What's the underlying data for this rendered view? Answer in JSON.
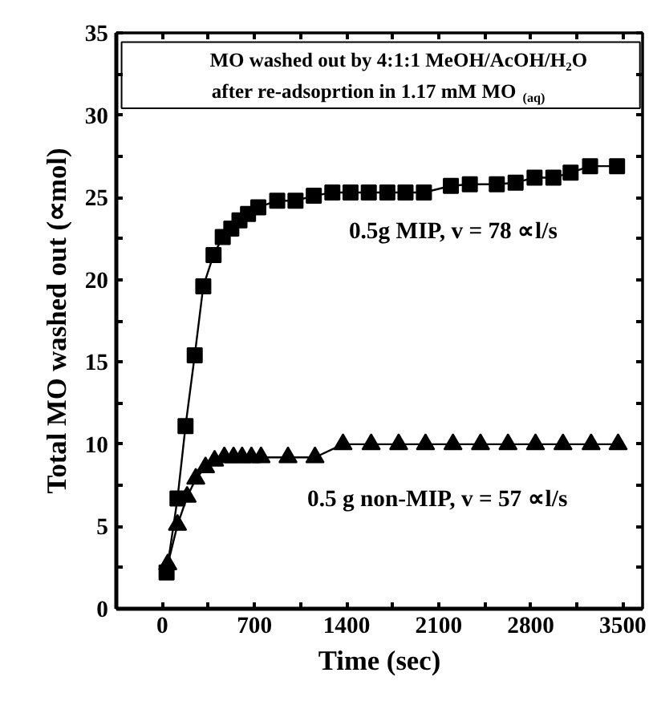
{
  "chart_data": {
    "type": "line",
    "title": "MO washed out by 4:1:1 MeOH/AcOH/H₂O",
    "subtitle": "after re-adsoprtion in 1.17 mM MO$_{(aq)}$",
    "xlabel": "Time (sec)",
    "ylabel": "Total MO washed out (∝mol)",
    "series": [
      {
        "name": "0.5g MIP, v = 78 ∝l/s",
        "color": "#000000",
        "marker": "square",
        "x": [
          32,
          115,
          176,
          246,
          311,
          389,
          459,
          524,
          586,
          651,
          729,
          873,
          1012,
          1151,
          1292,
          1430,
          1569,
          1710,
          1848,
          1988,
          2193,
          2337,
          2542,
          2685,
          2829,
          2972,
          3103,
          3251,
          3456
        ],
        "values": [
          2.2,
          6.7,
          11.1,
          15.4,
          19.6,
          21.5,
          22.6,
          23.1,
          23.6,
          24.0,
          24.4,
          24.8,
          24.8,
          25.1,
          25.3,
          25.3,
          25.3,
          25.3,
          25.3,
          25.3,
          25.7,
          25.8,
          25.8,
          25.9,
          26.2,
          26.2,
          26.5,
          26.9,
          26.9
        ]
      },
      {
        "name": "0.5 g non-MIP, v = 57 ∝l/s",
        "color": "#000000",
        "marker": "triangle",
        "x": [
          41,
          115,
          188,
          254,
          328,
          397,
          471,
          541,
          606,
          677,
          750,
          955,
          1160,
          1373,
          1587,
          1796,
          2000,
          2209,
          2418,
          2627,
          2836,
          3045,
          3259,
          3464
        ],
        "values": [
          2.7,
          5.1,
          6.8,
          7.9,
          8.6,
          9.0,
          9.2,
          9.2,
          9.2,
          9.2,
          9.2,
          9.2,
          9.2,
          10.0,
          10.0,
          10.0,
          10.0,
          10.0,
          10.0,
          10.0,
          10.0,
          10.0,
          10.0,
          10.0
        ]
      }
    ],
    "xlim": [
      -350,
      3650
    ],
    "ylim": [
      0,
      35
    ],
    "xticks": [
      0,
      {
        "value": 350,
        "label": null
      },
      700,
      {
        "value": 1050,
        "label": null
      },
      1400,
      {
        "value": 1750,
        "label": null
      },
      2100,
      {
        "value": 2450,
        "label": null
      },
      2800,
      {
        "value": 3150,
        "label": null
      },
      3500
    ],
    "yticks": [
      0,
      {
        "value": 2.5,
        "label": null
      },
      5,
      {
        "value": 7.5,
        "label": null
      },
      10,
      {
        "value": 12.5,
        "label": null
      },
      15,
      {
        "value": 17.5,
        "label": null
      },
      20,
      {
        "value": 22.5,
        "label": null
      },
      25,
      {
        "value": 27.5,
        "label": null
      },
      30,
      {
        "value": 32.5,
        "label": null
      },
      35
    ],
    "grid": false,
    "line_style": "solid"
  }
}
